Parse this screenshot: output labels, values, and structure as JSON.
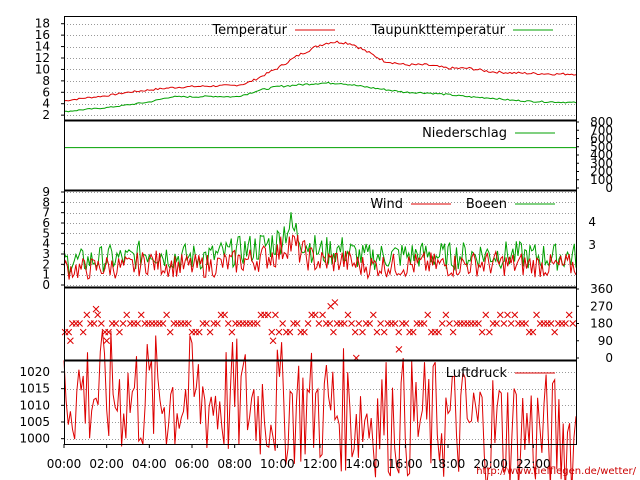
{
  "footer": {
    "url": "http://www.tiefflegen.de/wetter/"
  },
  "colors": {
    "red": "#dd0000",
    "green": "#00a000",
    "grid": "#999999",
    "axis": "#000000"
  },
  "x_axis": {
    "tick_labels": [
      "00:00",
      "02:00",
      "04:00",
      "06:00",
      "08:00",
      "10:00",
      "12:00",
      "14:00",
      "16:00",
      "18:00",
      "20:00",
      "22:00"
    ]
  },
  "chart_data": [
    {
      "type": "line",
      "panel": "temperature",
      "x_unit": "hour",
      "ylim": [
        1.5,
        19
      ],
      "left_ticks": [
        "2",
        "4",
        "6",
        "8",
        "10",
        "12",
        "14",
        "16",
        "18"
      ],
      "grid": true,
      "series": [
        {
          "name": "Temperatur",
          "color": "#dd0000",
          "x": [
            0,
            1,
            2,
            3,
            4,
            5,
            6,
            7,
            8,
            8.5,
            9,
            10,
            11,
            12,
            12.5,
            13,
            13.5,
            14,
            15,
            16,
            17,
            18,
            19,
            20,
            21,
            22,
            23,
            24
          ],
          "values": [
            4.5,
            5,
            5.4,
            6,
            6.4,
            6.8,
            7,
            7.1,
            7.2,
            7.5,
            8.3,
            10.2,
            12.5,
            14.3,
            14.8,
            14.8,
            14.5,
            13.5,
            11.5,
            10.8,
            10.8,
            10.2,
            10.2,
            9.6,
            9.4,
            9.3,
            9.2,
            9.2
          ]
        },
        {
          "name": "Taupunkttemperatur",
          "color": "#00a000",
          "x": [
            0,
            1,
            2,
            3,
            4,
            5,
            6,
            7,
            8,
            8.5,
            9,
            10,
            11,
            12,
            13,
            13.5,
            14,
            15,
            16,
            17,
            18,
            19,
            20,
            21,
            22,
            23,
            24
          ],
          "values": [
            2.6,
            3,
            3.3,
            3.8,
            4.3,
            5.2,
            5.2,
            5.3,
            5.2,
            5.6,
            6.2,
            7,
            7.3,
            7.6,
            7.6,
            7.3,
            7,
            6.5,
            6,
            5.9,
            5.6,
            5.2,
            5,
            4.6,
            4.4,
            4.3,
            4.2
          ]
        }
      ]
    },
    {
      "type": "line",
      "panel": "precipitation",
      "ylim": [
        0,
        800
      ],
      "right_ticks": [
        "0",
        "100",
        "200",
        "300",
        "400",
        "500",
        "600",
        "700",
        "800"
      ],
      "series": [
        {
          "name": "Niederschlag",
          "color": "#00a000",
          "x": [
            0,
            24
          ],
          "values": [
            490,
            490
          ]
        }
      ]
    },
    {
      "type": "line",
      "panel": "wind",
      "ylim": [
        0,
        9
      ],
      "left_ticks": [
        "0",
        "1",
        "2",
        "3",
        "4",
        "5",
        "6",
        "7",
        "8",
        "9"
      ],
      "right_ticks": [
        "3",
        "4"
      ],
      "grid": true,
      "series": [
        {
          "name": "Wind",
          "color": "#dd0000",
          "x": [
            0,
            1,
            2,
            3,
            4,
            5,
            6,
            7,
            8,
            9,
            10,
            10.5,
            11,
            11.5,
            12,
            13,
            14,
            15,
            16,
            17,
            18,
            19,
            20,
            21,
            22,
            23,
            24
          ],
          "values": [
            1.6,
            1.5,
            1.8,
            1.7,
            2.3,
            1.9,
            1.8,
            1.9,
            2.2,
            2.5,
            3,
            4.2,
            3.4,
            2.6,
            2.2,
            2.4,
            1.8,
            1.9,
            1.9,
            2,
            1.9,
            2,
            2.1,
            2,
            1.9,
            1.8,
            1.9
          ]
        },
        {
          "name": "Boeen",
          "color": "#00a000",
          "x": [
            0,
            1,
            2,
            3,
            4,
            5,
            6,
            7,
            8,
            9,
            10,
            10.5,
            11,
            11.5,
            12,
            13,
            14,
            15,
            16,
            17,
            18,
            19,
            20,
            21,
            22,
            23,
            24
          ],
          "values": [
            2.3,
            2.3,
            2.6,
            2.5,
            3.3,
            2.8,
            2.7,
            2.8,
            3.2,
            3.6,
            4.2,
            5.8,
            4.8,
            3.8,
            3.2,
            3.4,
            2.7,
            2.8,
            2.9,
            2.9,
            2.8,
            2.9,
            3,
            2.9,
            2.8,
            2.7,
            2.8
          ]
        }
      ]
    },
    {
      "type": "scatter",
      "panel": "wind-direction",
      "ylim": [
        0,
        360
      ],
      "right_ticks": [
        "0",
        "90",
        "180",
        "270",
        "360"
      ],
      "series": [
        {
          "marker": "x",
          "color": "#dd0000",
          "base": [
            135,
            180,
            225
          ],
          "outliers": [
            {
              "x": 1.5,
              "y": 255
            },
            {
              "x": 12.5,
              "y": 270
            },
            {
              "x": 12.7,
              "y": 290
            },
            {
              "x": 13.7,
              "y": 0
            },
            {
              "x": 15.7,
              "y": 45
            },
            {
              "x": 2.0,
              "y": 90
            },
            {
              "x": 9.8,
              "y": 90
            },
            {
              "x": 0.3,
              "y": 90
            }
          ]
        }
      ]
    },
    {
      "type": "line",
      "panel": "pressure",
      "ylim": [
        999,
        1023
      ],
      "left_ticks": [
        "1000",
        "1005",
        "1010",
        "1015",
        "1020"
      ],
      "grid": true,
      "series": [
        {
          "name": "Luftdruck",
          "color": "#dd0000",
          "x": [
            0,
            2,
            4,
            6,
            8,
            10,
            12,
            14,
            16,
            18,
            20,
            22,
            23,
            24
          ],
          "values": [
            1014.8,
            1013.8,
            1012.8,
            1012.1,
            1011.4,
            1010.6,
            1009.4,
            1007.5,
            1006.2,
            1004.7,
            1003.6,
            1002.2,
            1000.9,
            1000.2
          ]
        }
      ]
    }
  ]
}
